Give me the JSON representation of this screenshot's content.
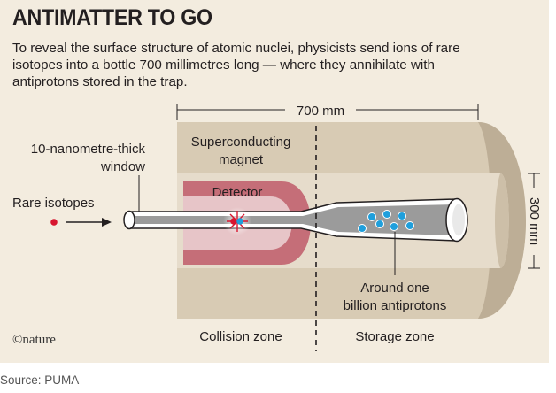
{
  "title": "ANTIMATTER TO GO",
  "description_lines": [
    "To reveal the surface structure of atomic nuclei, physicists send ions of rare",
    "isotopes into a bottle 700 millimetres long — where they annihilate with",
    "antiprotons stored in the trap."
  ],
  "labels": {
    "length": "700 mm",
    "diameter": "300 mm",
    "window_line1": "10-nanometre-thick",
    "window_line2": "window",
    "magnet_line1": "Superconducting",
    "magnet_line2": "magnet",
    "detector": "Detector",
    "rare_isotopes": "Rare isotopes",
    "antiprotons_line1": "Around one",
    "antiprotons_line2": "billion antiprotons",
    "collision_zone": "Collision zone",
    "storage_zone": "Storage zone"
  },
  "logo": "©nature",
  "source": "Source: PUMA",
  "colors": {
    "panel_bg": "#f3ecdf",
    "magnet": "#d8cbb4",
    "magnet_inner": "#e6dccb",
    "detector": "#c56e78",
    "tube": "#9b9b9b",
    "antiproton": "#1f9fdc",
    "isotope": "#d7152f"
  }
}
